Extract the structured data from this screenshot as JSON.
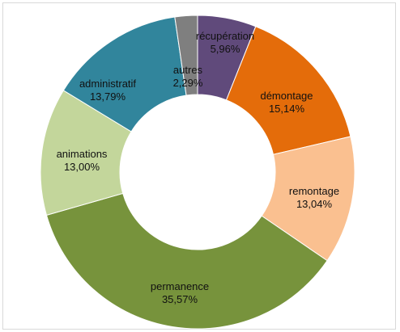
{
  "chart_data": {
    "type": "pie",
    "donut": true,
    "slices": [
      {
        "label": "récupération",
        "value_text": "5,96%",
        "value": 5.96,
        "color": "#604a7b"
      },
      {
        "label": "démontage",
        "value_text": "15,14%",
        "value": 15.14,
        "color": "#e46c0a"
      },
      {
        "label": "remontage",
        "value_text": "13,04%",
        "value": 13.04,
        "color": "#fac090"
      },
      {
        "label": "permanence",
        "value_text": "35,57%",
        "value": 35.57,
        "color": "#77933c"
      },
      {
        "label": "animations",
        "value_text": "13,00%",
        "value": 13.0,
        "color": "#c3d69b"
      },
      {
        "label": "administratif",
        "value_text": "13,79%",
        "value": 13.79,
        "color": "#31859c"
      },
      {
        "label": "autres",
        "value_text": "2,29%",
        "value": 2.29,
        "color": "#7f7f7f"
      }
    ]
  }
}
